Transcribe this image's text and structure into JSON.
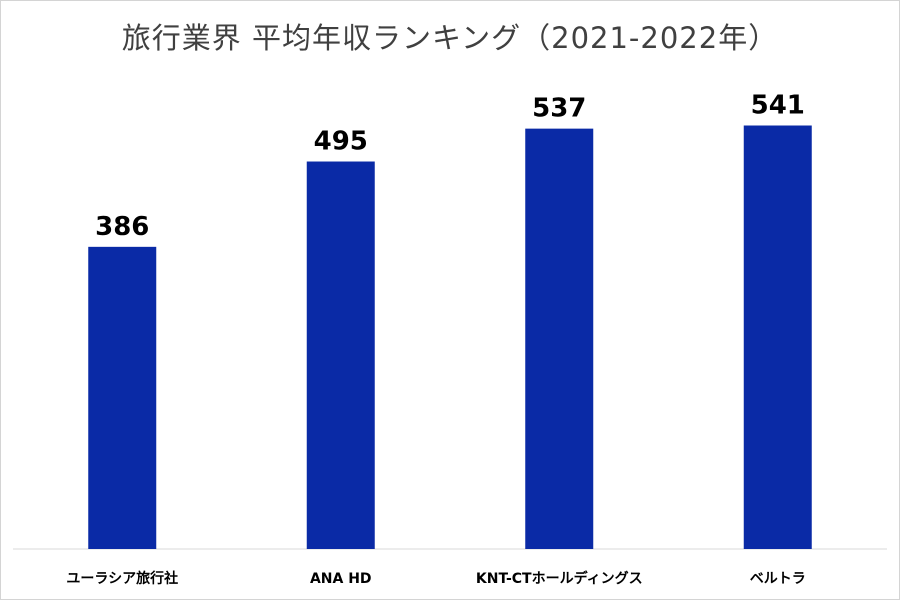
{
  "chart_data": {
    "type": "bar",
    "title": "旅行業界 平均年収ランキング（2021-2022年）",
    "xlabel": "",
    "ylabel": "",
    "categories": [
      "ユーラシア旅行社",
      "ANA HD",
      "KNT-CTホールディングス",
      "ベルトラ"
    ],
    "values": [
      386,
      495,
      537,
      541
    ],
    "ylim": [
      0,
      600
    ],
    "grid": false,
    "legend": "none",
    "bar_color": "#0a2aa6"
  }
}
